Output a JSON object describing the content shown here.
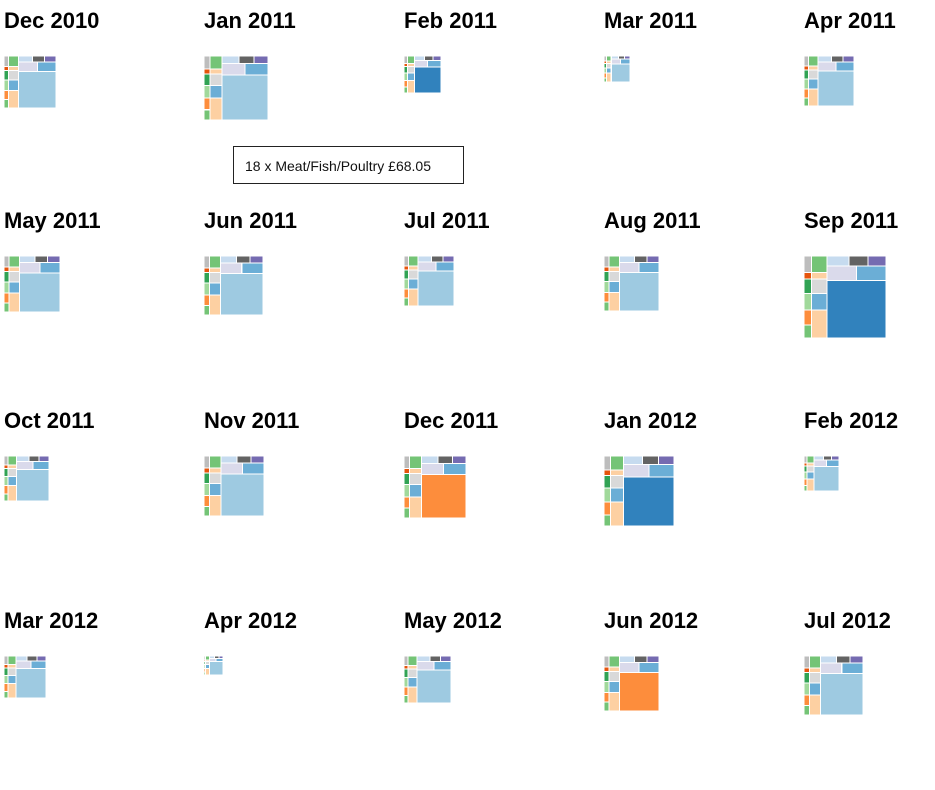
{
  "chart_data": {
    "type": "treemap",
    "tooltip": "18 x Meat/Fish/Poultry £68.05",
    "months": [
      {
        "title": "Dec 2010",
        "total": 2.0
      },
      {
        "title": "Jan 2011",
        "total": 3.0
      },
      {
        "title": "Feb 2011",
        "total": 1.0
      },
      {
        "title": "Mar 2011",
        "total": 0.5
      },
      {
        "title": "Apr 2011",
        "total": 1.8
      },
      {
        "title": "May 2011",
        "total": 2.3
      },
      {
        "title": "Jun 2011",
        "total": 2.5
      },
      {
        "title": "Jul 2011",
        "total": 1.8
      },
      {
        "title": "Aug 2011",
        "total": 2.2
      },
      {
        "title": "Sep 2011",
        "total": 4.9
      },
      {
        "title": "Oct 2011",
        "total": 1.5
      },
      {
        "title": "Nov 2011",
        "total": 2.6
      },
      {
        "title": "Dec 2011",
        "total": 2.8
      },
      {
        "title": "Jan 2012",
        "total": 3.6
      },
      {
        "title": "Feb 2012",
        "total": 0.9
      },
      {
        "title": "Mar 2012",
        "total": 1.3
      },
      {
        "title": "Apr 2012",
        "total": 0.25
      },
      {
        "title": "May 2012",
        "total": 1.6
      },
      {
        "title": "Jun 2012",
        "total": 2.2
      },
      {
        "title": "Jul 2012",
        "total": 2.5
      }
    ]
  }
}
